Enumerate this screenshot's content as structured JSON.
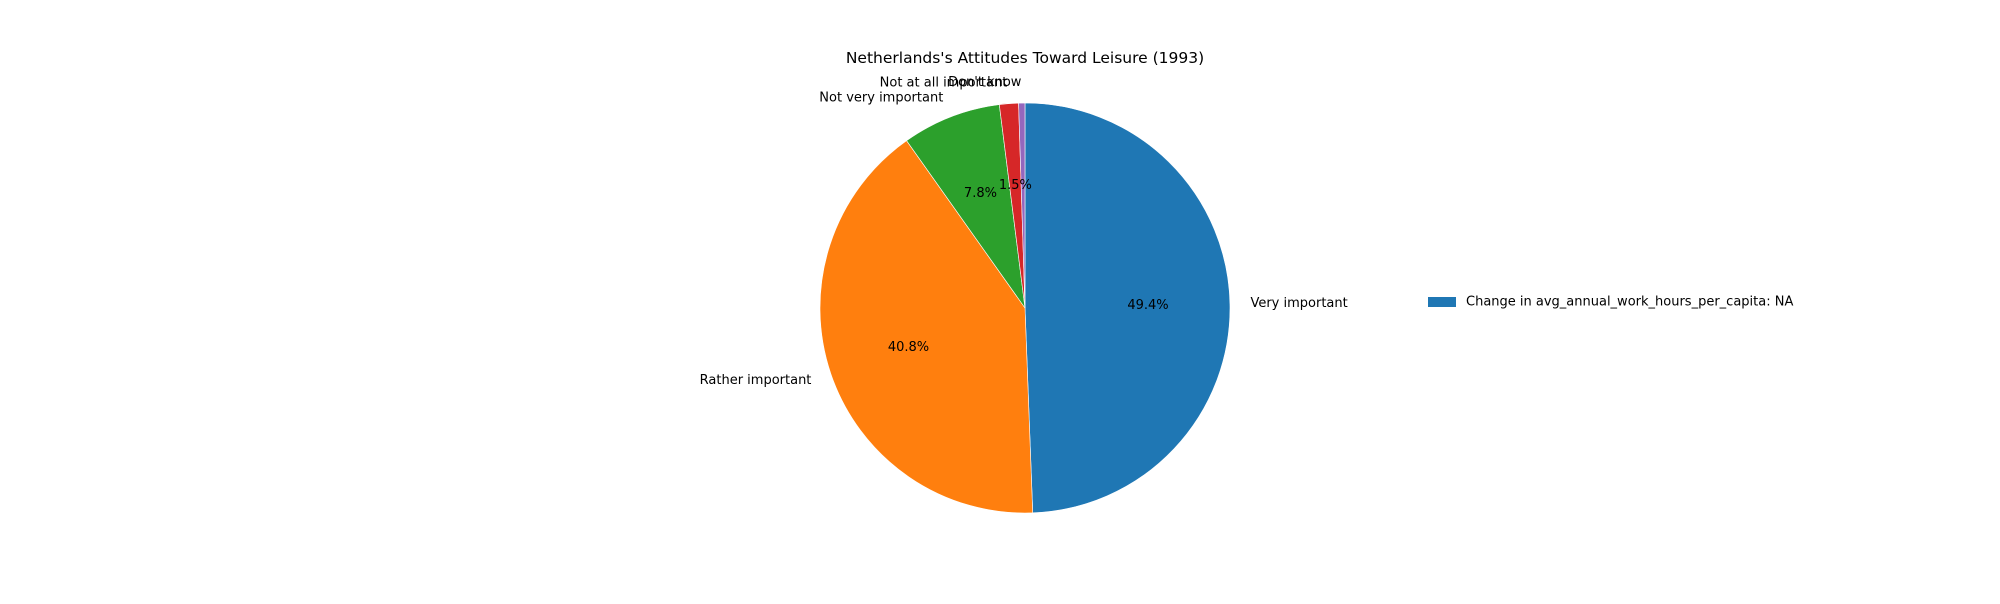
{
  "chart_data": {
    "type": "pie",
    "title": "Netherlands's Attitudes Toward Leisure (1993)",
    "slices": [
      {
        "label": "Very important",
        "value": 49.4,
        "pct_label": "49.4%",
        "color": "#1f77b4"
      },
      {
        "label": "Rather important",
        "value": 40.8,
        "pct_label": "40.8%",
        "color": "#ff7f0e"
      },
      {
        "label": "Not very important",
        "value": 7.8,
        "pct_label": "7.8%",
        "color": "#2ca02c"
      },
      {
        "label": "Not at all important",
        "value": 1.5,
        "pct_label": "1.5%",
        "color": "#d62728"
      },
      {
        "label": "Don't know",
        "value": 0.5,
        "pct_label": "",
        "color": "#9467bd"
      }
    ],
    "start_angle_deg": 90,
    "direction": "clockwise",
    "legend": {
      "entries": [
        {
          "label": "Change in avg_annual_work_hours_per_capita: NA",
          "color": "#1f77b4"
        }
      ],
      "placement": "right"
    }
  }
}
